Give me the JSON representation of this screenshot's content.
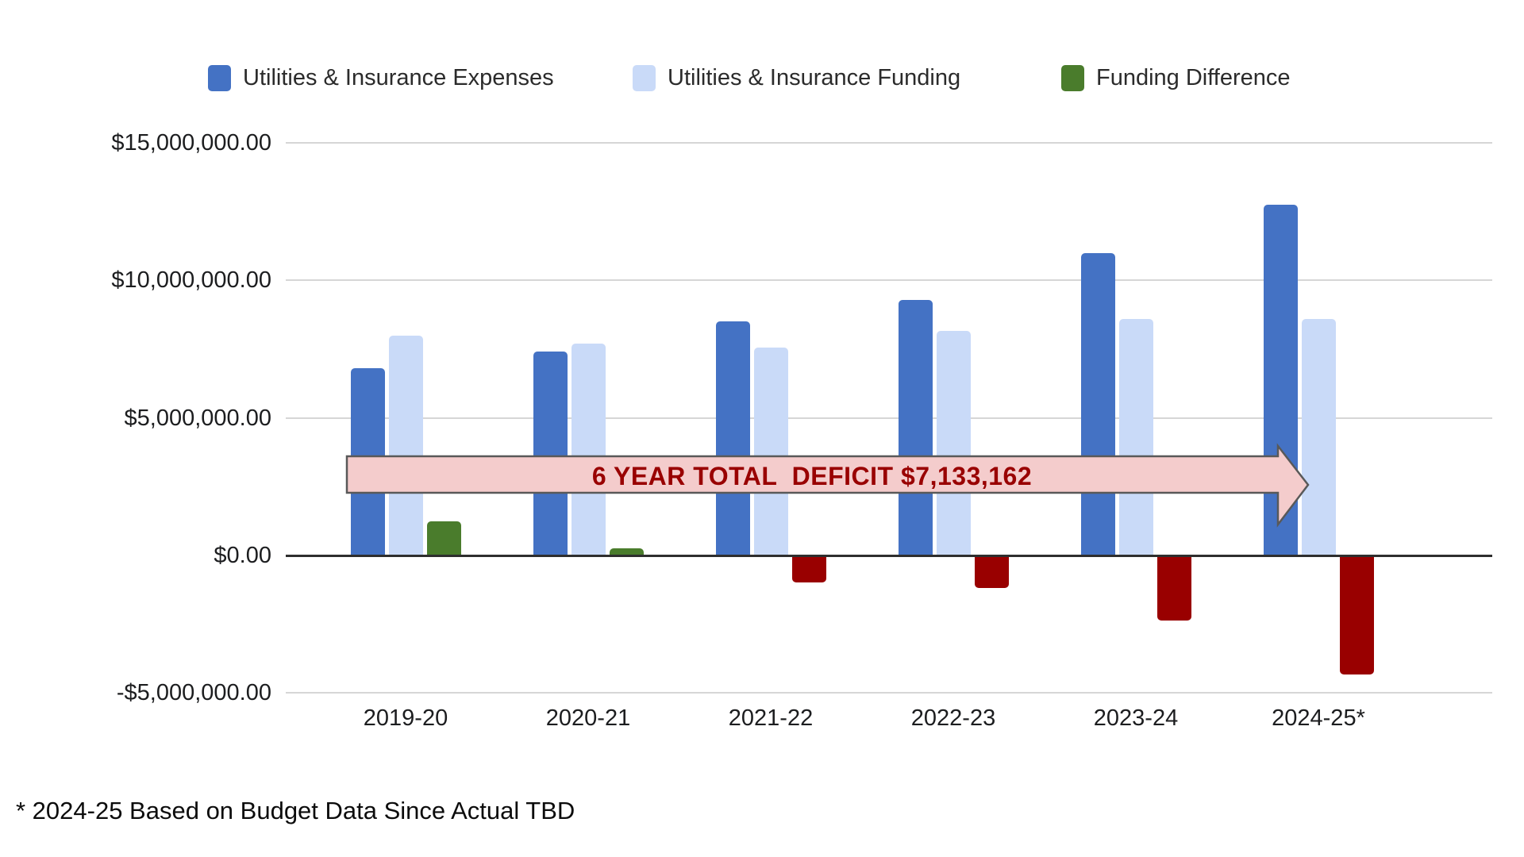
{
  "legend": {
    "items": [
      {
        "label": "Utilities & Insurance Expenses",
        "color": "#4472c4"
      },
      {
        "label": "Utilities & Insurance Funding",
        "color": "#c9daf8"
      },
      {
        "label": "Funding Difference",
        "color": "#4a7c2c"
      }
    ]
  },
  "annotation": {
    "arrow_text": "6 YEAR TOTAL  DEFICIT $7,133,162",
    "arrow_fill": "#f4cccc",
    "arrow_border": "#595959",
    "text_color": "#990000"
  },
  "footnote": "* 2024-25 Based on Budget Data Since Actual TBD",
  "colors": {
    "expenses": "#4472c4",
    "funding": "#c9daf8",
    "difference_positive": "#4a7c2c",
    "difference_negative": "#990000",
    "gridline": "#d6d6d6",
    "axis": "#2e2e2e"
  },
  "chart_data": {
    "type": "bar",
    "categories": [
      "2019-20",
      "2020-21",
      "2021-22",
      "2022-23",
      "2023-24",
      "2024-25*"
    ],
    "series": [
      {
        "name": "Utilities & Insurance Expenses",
        "color": "#4472c4",
        "values": [
          6800000,
          7400000,
          8500000,
          9300000,
          11000000,
          12750000
        ]
      },
      {
        "name": "Utilities & Insurance Funding",
        "color": "#c9daf8",
        "values": [
          8000000,
          7700000,
          7550000,
          8150000,
          8600000,
          8600000
        ]
      },
      {
        "name": "Funding Difference",
        "color_positive": "#4a7c2c",
        "color_negative": "#990000",
        "values": [
          1250000,
          250000,
          -950000,
          -1150000,
          -2350000,
          -4300000
        ]
      }
    ],
    "y_axis": {
      "tick_labels": [
        "$15,000,000.00",
        "$10,000,000.00",
        "$5,000,000.00",
        "$0.00",
        "-$5,000,000.00"
      ],
      "tick_values": [
        15000000,
        10000000,
        5000000,
        0,
        -5000000
      ],
      "ylim": [
        -5000000,
        15000000
      ]
    },
    "grid": true,
    "legend_position": "top",
    "title": "",
    "xlabel": "",
    "ylabel": ""
  }
}
